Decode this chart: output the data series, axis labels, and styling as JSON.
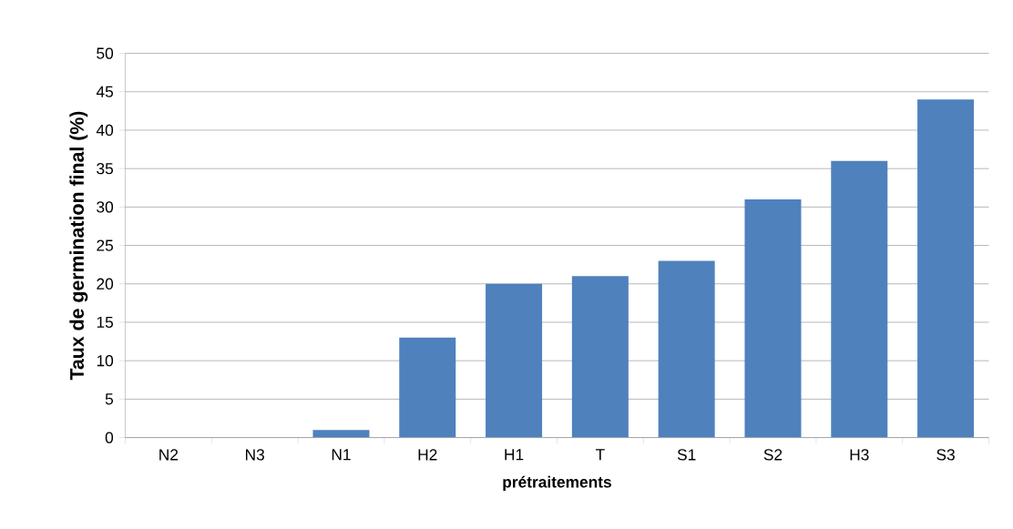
{
  "chart_data": {
    "type": "bar",
    "xlabel": "prétraitements",
    "ylabel": "Taux de germination final (%)",
    "categories": [
      "N2",
      "N3",
      "N1",
      "H2",
      "H1",
      "T",
      "S1",
      "S2",
      "H3",
      "S3"
    ],
    "values": [
      0,
      0,
      1,
      13,
      20,
      21,
      23,
      31,
      36,
      44
    ],
    "color": "#4f81bd",
    "ylim": [
      0,
      50
    ],
    "yticks": [
      0,
      5,
      10,
      15,
      20,
      25,
      30,
      35,
      40,
      45,
      50
    ],
    "grid": "y"
  }
}
